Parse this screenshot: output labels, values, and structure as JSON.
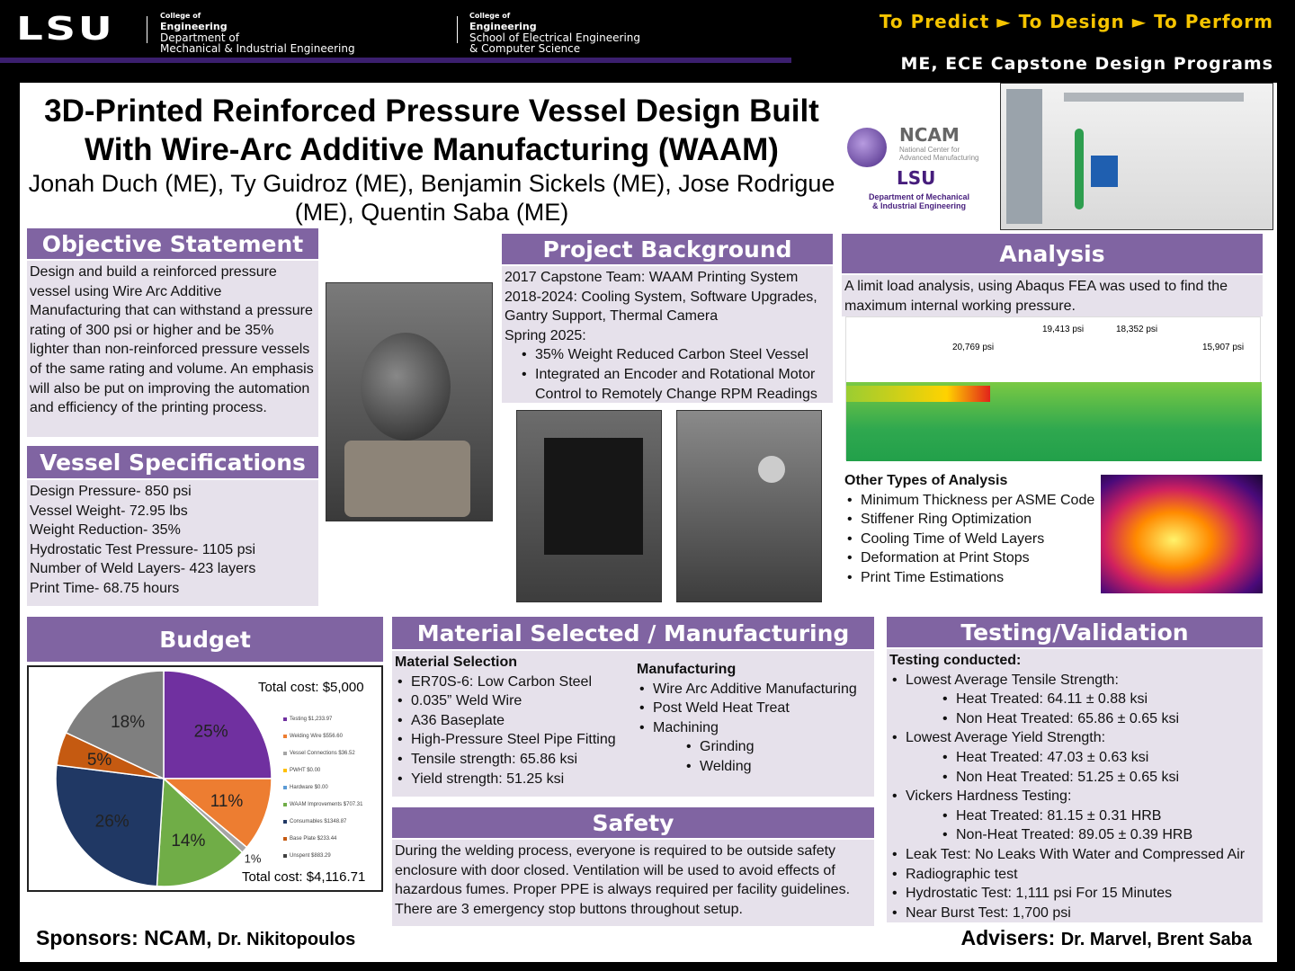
{
  "header": {
    "logo": "LSU",
    "college1": "College of",
    "eng1": "Engineering",
    "dept1a": "Department of",
    "dept1b": "Mechanical & Industrial Engineering",
    "college2": "College of",
    "eng2": "Engineering",
    "dept2a": "School of Electrical Engineering",
    "dept2b": "& Computer Science",
    "tagline": "To Predict ► To Design ► To Perform",
    "program": "ME, ECE Capstone Design Programs"
  },
  "title": {
    "line1": "3D-Printed Reinforced Pressure Vessel Design Built",
    "line2": "With Wire-Arc Additive Manufacturing (WAAM)",
    "authors1": "Jonah Duch (ME), Ty Guidroz (ME), Benjamin Sickels (ME), Jose Rodrigue",
    "authors2": "(ME), Quentin Saba (ME)"
  },
  "ncam": {
    "name": "NCAM",
    "sub1": "National Center for",
    "sub2": "Advanced Manufacturing",
    "lsu": "LSU",
    "dept1": "Department of Mechanical",
    "dept2": "& Industrial Engineering"
  },
  "objective": {
    "heading": "Objective Statement",
    "text": "Design and build a reinforced pressure vessel using Wire Arc Additive Manufacturing that can withstand a pressure rating of 300 psi or higher and be 35% lighter than non-reinforced pressure vessels of the same rating and volume. An emphasis will also be put on improving the automation and efficiency of the printing process."
  },
  "specs": {
    "heading": "Vessel Specifications",
    "items": [
      "Design Pressure- 850 psi",
      "Vessel Weight- 72.95 lbs",
      "Weight Reduction- 35%",
      "Hydrostatic Test Pressure- 1105 psi",
      "Number of Weld Layers- 423 layers",
      "Print Time- 68.75 hours"
    ]
  },
  "background": {
    "heading": "Project Background",
    "lines": [
      "2017 Capstone Team: WAAM Printing System",
      "2018-2024: Cooling System, Software Upgrades, Gantry Support, Thermal Camera",
      "Spring 2025:"
    ],
    "bullets": [
      "35% Weight Reduced Carbon Steel Vessel",
      "Integrated an Encoder and Rotational Motor Control to Remotely Change RPM Readings"
    ]
  },
  "analysis": {
    "heading": "Analysis",
    "text": "A limit load analysis, using Abaqus FEA was used to find the maximum internal working pressure.",
    "labels": [
      "20,769 psi",
      "19,413 psi",
      "18,352 psi",
      "15,907 psi"
    ],
    "other_heading": "Other Types of Analysis",
    "other": [
      "Minimum Thickness per ASME Code",
      "Stiffener Ring Optimization",
      "Cooling Time of Weld Layers",
      "Deformation at Print Stops",
      "Print Time Estimations"
    ]
  },
  "budget": {
    "heading": "Budget",
    "total_planned": "Total cost: $5,000",
    "total_actual": "Total cost: $4,116.71",
    "slices": [
      {
        "label": "25%",
        "value": 25,
        "color": "#7030a0"
      },
      {
        "label": "11%",
        "value": 11,
        "color": "#ed7d31"
      },
      {
        "label": "1%",
        "value": 1,
        "color": "#a5a5a5"
      },
      {
        "label": "14%",
        "value": 14,
        "color": "#70ad47"
      },
      {
        "label": "26%",
        "value": 26,
        "color": "#203864"
      },
      {
        "label": "5%",
        "value": 5,
        "color": "#c55a11"
      },
      {
        "label": "18%",
        "value": 18,
        "color": "#7f7f7f"
      }
    ],
    "legend": [
      {
        "name": "Testing",
        "amount": "$1,233.97",
        "color": "#7030a0"
      },
      {
        "name": "Welding Wire",
        "amount": "$556.60",
        "color": "#ed7d31"
      },
      {
        "name": "Vessel Connections",
        "amount": "$36.52",
        "color": "#a5a5a5"
      },
      {
        "name": "PWHT",
        "amount": "$0.00",
        "color": "#ffc000"
      },
      {
        "name": "Hardware",
        "amount": "$0.00",
        "color": "#5b9bd5"
      },
      {
        "name": "WAAM Improvements",
        "amount": "$707.31",
        "color": "#70ad47"
      },
      {
        "name": "Consumables",
        "amount": "$1348.87",
        "color": "#203864"
      },
      {
        "name": "Base Plate",
        "amount": "$233.44",
        "color": "#c55a11"
      },
      {
        "name": "Unspent",
        "amount": "$883.29",
        "color": "#404040"
      }
    ]
  },
  "material": {
    "heading": "Material Selected / Manufacturing",
    "mat_heading": "Material Selection",
    "mat": [
      "ER70S-6: Low Carbon Steel",
      "0.035” Weld Wire",
      "A36 Baseplate",
      "High-Pressure Steel Pipe Fitting",
      "Tensile strength: 65.86 ksi",
      "Yield strength: 51.25 ksi"
    ],
    "mfg_heading": "Manufacturing",
    "mfg": [
      "Wire Arc Additive Manufacturing",
      "Post Weld Heat Treat",
      "Machining"
    ],
    "mfg_sub": [
      "Grinding",
      "Welding"
    ]
  },
  "safety": {
    "heading": "Safety",
    "text": "During the welding process, everyone is required to be outside safety enclosure with door closed. Ventilation will be used to avoid effects of hazardous fumes. Proper PPE is always required per facility guidelines. There are 3 emergency stop buttons throughout setup."
  },
  "testing": {
    "heading": "Testing/Validation",
    "sub": "Testing conducted:",
    "t1": "Lowest Average Tensile Strength:",
    "t1a": "Heat Treated: 64.11 ± 0.88 ksi",
    "t1b": "Non Heat Treated: 65.86 ± 0.65 ksi",
    "t2": "Lowest Average Yield Strength:",
    "t2a": "Heat Treated: 47.03 ± 0.63 ksi",
    "t2b": "Non Heat Treated: 51.25 ± 0.65 ksi",
    "t3": "Vickers Hardness Testing:",
    "t3a": "Heat Treated: 81.15 ± 0.31 HRB",
    "t3b": "Non-Heat Treated: 89.05 ± 0.39 HRB",
    "t4": "Leak Test: No Leaks With Water and Compressed Air",
    "t5": "Radiographic test",
    "t6": "Hydrostatic Test: 1,111 psi For 15 Minutes",
    "t7": "Near Burst Test:  1,700 psi"
  },
  "footer": {
    "sponsors_label": "Sponsors: NCAM,",
    "sponsors": "Dr. Nikitopoulos",
    "advisers_label": "Advisers:",
    "advisers": "Dr. Marvel, Brent Saba"
  }
}
